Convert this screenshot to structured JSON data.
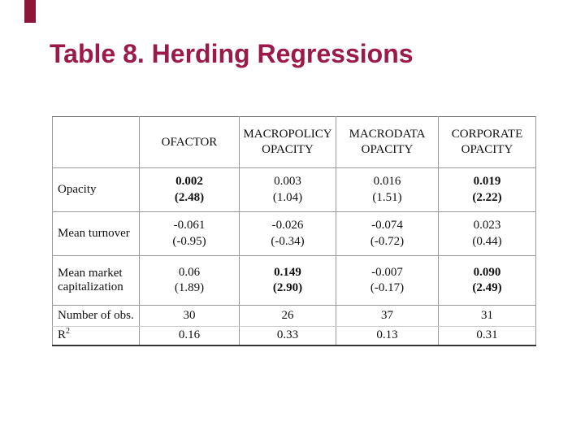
{
  "theme": {
    "title_color": "#9C1A4B",
    "accent_bar_color": "#8C1538",
    "table_text_color": "#111111"
  },
  "title": "Table 8. Herding Regressions",
  "table": {
    "columns": [
      "",
      "OFACTOR",
      "MACROPOLICY OPACITY",
      "MACRODATA OPACITY",
      "CORPORATE OPACITY"
    ],
    "rows": [
      {
        "label": "Opacity",
        "cells": [
          {
            "value": "0.002",
            "tstat": "(2.48)",
            "bold": true
          },
          {
            "value": "0.003",
            "tstat": "(1.04)",
            "bold": false
          },
          {
            "value": "0.016",
            "tstat": "(1.51)",
            "bold": false
          },
          {
            "value": "0.019",
            "tstat": "(2.22)",
            "bold": true
          }
        ]
      },
      {
        "label": "Mean turnover",
        "cells": [
          {
            "value": "-0.061",
            "tstat": "(-0.95)",
            "bold": false
          },
          {
            "value": "-0.026",
            "tstat": "(-0.34)",
            "bold": false
          },
          {
            "value": "-0.074",
            "tstat": "(-0.72)",
            "bold": false
          },
          {
            "value": "0.023",
            "tstat": "(0.44)",
            "bold": false
          }
        ]
      },
      {
        "label": "Mean market capitalization",
        "cells": [
          {
            "value": "0.06",
            "tstat": "(1.89)",
            "bold": false
          },
          {
            "value": "0.149",
            "tstat": "(2.90)",
            "bold": true
          },
          {
            "value": "-0.007",
            "tstat": "(-0.17)",
            "bold": false
          },
          {
            "value": "0.090",
            "tstat": "(2.49)",
            "bold": true
          }
        ]
      },
      {
        "label": "Number of obs.",
        "cells": [
          {
            "value": "30",
            "bold": false
          },
          {
            "value": "26",
            "bold": false
          },
          {
            "value": "37",
            "bold": false
          },
          {
            "value": "31",
            "bold": false
          }
        ]
      },
      {
        "label": "R²",
        "label_base": "R",
        "label_sup": "2",
        "cells": [
          {
            "value": "0.16",
            "bold": false
          },
          {
            "value": "0.33",
            "bold": false
          },
          {
            "value": "0.13",
            "bold": false
          },
          {
            "value": "0.31",
            "bold": false
          }
        ]
      }
    ]
  }
}
